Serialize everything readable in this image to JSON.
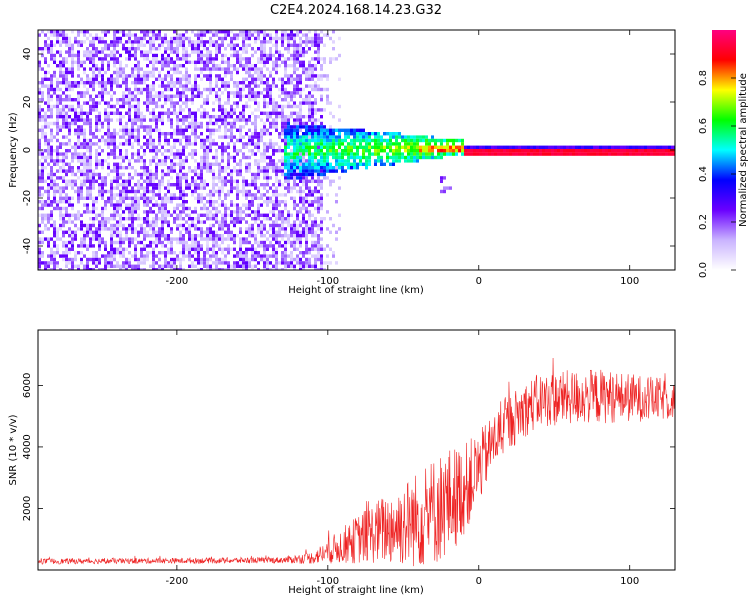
{
  "title": "C2E4.2024.168.14.23.G32",
  "chart_data": [
    {
      "type": "heatmap",
      "xlabel": "Height of straight line (km)",
      "ylabel": "Frequency (Hz)",
      "xlim": [
        -292,
        130
      ],
      "ylim": [
        -50,
        50
      ],
      "x_ticks": [
        -200,
        -100,
        0,
        100
      ],
      "y_ticks": [
        -40,
        -20,
        0,
        20,
        40
      ],
      "grid": false,
      "colorbar": {
        "label": "Normalized spectral amplitude",
        "range": [
          0.0,
          1.0
        ],
        "ticks": [
          0.0,
          0.2,
          0.4,
          0.6,
          0.8
        ],
        "colormap": [
          "#ffffff",
          "#c9b3ff",
          "#6a00ff",
          "#0000ff",
          "#00ffff",
          "#00ff00",
          "#ffff00",
          "#ff0000",
          "#ff0080"
        ]
      },
      "features": {
        "noise_region_x": [
          -292,
          -105
        ],
        "transition_x": [
          -130,
          -10
        ],
        "signal_line_x": [
          -10,
          130
        ],
        "signal_line_frequency": 0,
        "signal_peak_amplitude": 0.95
      }
    },
    {
      "type": "line",
      "xlabel": "Height of straight line (km)",
      "ylabel": "SNR (10 * v/v)",
      "xlim": [
        -292,
        130
      ],
      "ylim": [
        0,
        7800
      ],
      "x_ticks": [
        -200,
        -100,
        0,
        100
      ],
      "y_ticks": [
        2000,
        4000,
        6000
      ],
      "grid": false,
      "series_color": "#ee2222",
      "envelope": {
        "x": [
          -292,
          -200,
          -130,
          -110,
          -100,
          -90,
          -80,
          -70,
          -60,
          -50,
          -40,
          -30,
          -20,
          -10,
          0,
          10,
          20,
          30,
          40,
          60,
          80,
          100,
          120,
          130
        ],
        "mean": [
          280,
          300,
          320,
          400,
          600,
          800,
          1000,
          1200,
          1350,
          1500,
          1650,
          1900,
          2200,
          2600,
          3300,
          4200,
          4800,
          5200,
          5500,
          5600,
          5650,
          5600,
          5550,
          5500
        ],
        "amp": [
          90,
          90,
          100,
          200,
          400,
          600,
          800,
          1000,
          1200,
          1400,
          1600,
          1800,
          1800,
          1500,
          1200,
          900,
          900,
          900,
          900,
          900,
          900,
          800,
          700,
          600
        ]
      }
    }
  ]
}
